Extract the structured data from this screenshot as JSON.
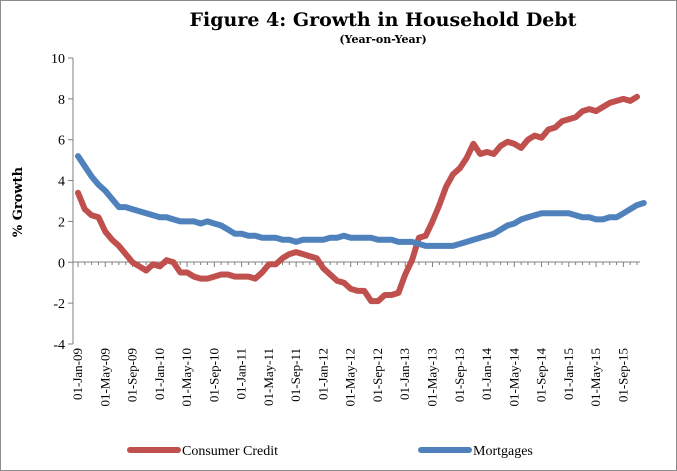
{
  "chart_data": {
    "type": "line",
    "title": "Figure 4: Growth in Household Debt",
    "subtitle": "(Year-on-Year)",
    "ylabel": "% Growth",
    "xlabel": "",
    "ylim": [
      -4,
      10
    ],
    "yticks": [
      -4,
      -2,
      0,
      2,
      4,
      6,
      8,
      10
    ],
    "grid": false,
    "legend_position": "bottom",
    "x_tick_labels": [
      {
        "index": 0,
        "label": "01-Jan-09"
      },
      {
        "index": 4,
        "label": "01-May-09"
      },
      {
        "index": 8,
        "label": "01-Sep-09"
      },
      {
        "index": 12,
        "label": "01-Jan-10"
      },
      {
        "index": 16,
        "label": "01-May-10"
      },
      {
        "index": 20,
        "label": "01-Sep-10"
      },
      {
        "index": 24,
        "label": "01-Jan-11"
      },
      {
        "index": 28,
        "label": "01-May-11"
      },
      {
        "index": 32,
        "label": "01-Sep-11"
      },
      {
        "index": 36,
        "label": "01-Jan-12"
      },
      {
        "index": 40,
        "label": "01-May-12"
      },
      {
        "index": 44,
        "label": "01-Sep-12"
      },
      {
        "index": 48,
        "label": "01-Jan-13"
      },
      {
        "index": 52,
        "label": "01-May-13"
      },
      {
        "index": 56,
        "label": "01-Sep-13"
      },
      {
        "index": 60,
        "label": "01-Jan-14"
      },
      {
        "index": 64,
        "label": "01-May-14"
      },
      {
        "index": 68,
        "label": "01-Sep-14"
      },
      {
        "index": 72,
        "label": "01-Jan-15"
      },
      {
        "index": 76,
        "label": "01-May-15"
      },
      {
        "index": 80,
        "label": "01-Sep-15"
      }
    ],
    "series": [
      {
        "name": "Consumer Credit",
        "color": "#c0504d",
        "values": [
          3.4,
          2.6,
          2.3,
          2.2,
          1.5,
          1.1,
          0.8,
          0.4,
          0.0,
          -0.2,
          -0.4,
          -0.1,
          -0.2,
          0.1,
          0.0,
          -0.5,
          -0.5,
          -0.7,
          -0.8,
          -0.8,
          -0.7,
          -0.6,
          -0.6,
          -0.7,
          -0.7,
          -0.7,
          -0.8,
          -0.5,
          -0.1,
          -0.1,
          0.2,
          0.4,
          0.5,
          0.4,
          0.3,
          0.2,
          -0.3,
          -0.6,
          -0.9,
          -1.0,
          -1.3,
          -1.4,
          -1.4,
          -1.9,
          -1.9,
          -1.6,
          -1.6,
          -1.5,
          -0.6,
          0.1,
          1.2,
          1.3,
          2.0,
          2.8,
          3.7,
          4.3,
          4.6,
          5.1,
          5.8,
          5.3,
          5.4,
          5.3,
          5.7,
          5.9,
          5.8,
          5.6,
          6.0,
          6.2,
          6.1,
          6.5,
          6.6,
          6.9,
          7.0,
          7.1,
          7.4,
          7.5,
          7.4,
          7.6,
          7.8,
          7.9,
          8.0,
          7.9,
          8.1
        ]
      },
      {
        "name": "Mortgages",
        "color": "#4f81bd",
        "values": [
          5.2,
          4.7,
          4.2,
          3.8,
          3.5,
          3.1,
          2.7,
          2.7,
          2.6,
          2.5,
          2.4,
          2.3,
          2.2,
          2.2,
          2.1,
          2.0,
          2.0,
          2.0,
          1.9,
          2.0,
          1.9,
          1.8,
          1.6,
          1.4,
          1.4,
          1.3,
          1.3,
          1.2,
          1.2,
          1.2,
          1.1,
          1.1,
          1.0,
          1.1,
          1.1,
          1.1,
          1.1,
          1.2,
          1.2,
          1.3,
          1.2,
          1.2,
          1.2,
          1.2,
          1.1,
          1.1,
          1.1,
          1.0,
          1.0,
          1.0,
          0.9,
          0.8,
          0.8,
          0.8,
          0.8,
          0.8,
          0.9,
          1.0,
          1.1,
          1.2,
          1.3,
          1.4,
          1.6,
          1.8,
          1.9,
          2.1,
          2.2,
          2.3,
          2.4,
          2.4,
          2.4,
          2.4,
          2.4,
          2.3,
          2.2,
          2.2,
          2.1,
          2.1,
          2.2,
          2.2,
          2.4,
          2.6,
          2.8,
          2.9
        ]
      }
    ]
  }
}
